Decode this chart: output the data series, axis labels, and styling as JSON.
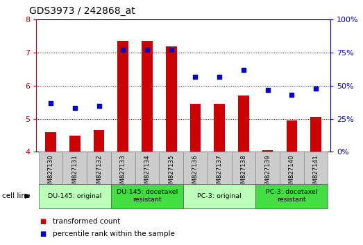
{
  "title": "GDS3973 / 242868_at",
  "samples": [
    "GSM827130",
    "GSM827131",
    "GSM827132",
    "GSM827133",
    "GSM827134",
    "GSM827135",
    "GSM827136",
    "GSM827137",
    "GSM827138",
    "GSM827139",
    "GSM827140",
    "GSM827141"
  ],
  "bar_values": [
    4.6,
    4.5,
    4.65,
    7.35,
    7.35,
    7.2,
    5.45,
    5.45,
    5.7,
    4.05,
    4.95,
    5.05
  ],
  "scatter_values": [
    37,
    33,
    35,
    77,
    77,
    77,
    57,
    57,
    62,
    47,
    43,
    48
  ],
  "bar_color": "#cc0000",
  "scatter_color": "#0000cc",
  "ylim_left": [
    4,
    8
  ],
  "ylim_right": [
    0,
    100
  ],
  "yticks_left": [
    4,
    5,
    6,
    7,
    8
  ],
  "yticks_right": [
    0,
    25,
    50,
    75,
    100
  ],
  "groups": [
    {
      "label": "DU-145: original",
      "start": 0,
      "end": 3,
      "color": "#bbffbb"
    },
    {
      "label": "DU-145: docetaxel\nresistant",
      "start": 3,
      "end": 6,
      "color": "#44dd44"
    },
    {
      "label": "PC-3: original",
      "start": 6,
      "end": 9,
      "color": "#bbffbb"
    },
    {
      "label": "PC-3: docetaxel\nresistant",
      "start": 9,
      "end": 12,
      "color": "#44dd44"
    }
  ],
  "cell_line_label": "cell line",
  "legend_bar_label": "transformed count",
  "legend_scatter_label": "percentile rank within the sample",
  "grid_color": "#000000",
  "tick_color_left": "#cc0000",
  "tick_color_right": "#0000cc",
  "bar_width": 0.45,
  "bg_color": "#ffffff",
  "label_bg": "#cccccc",
  "label_edge": "#888888"
}
